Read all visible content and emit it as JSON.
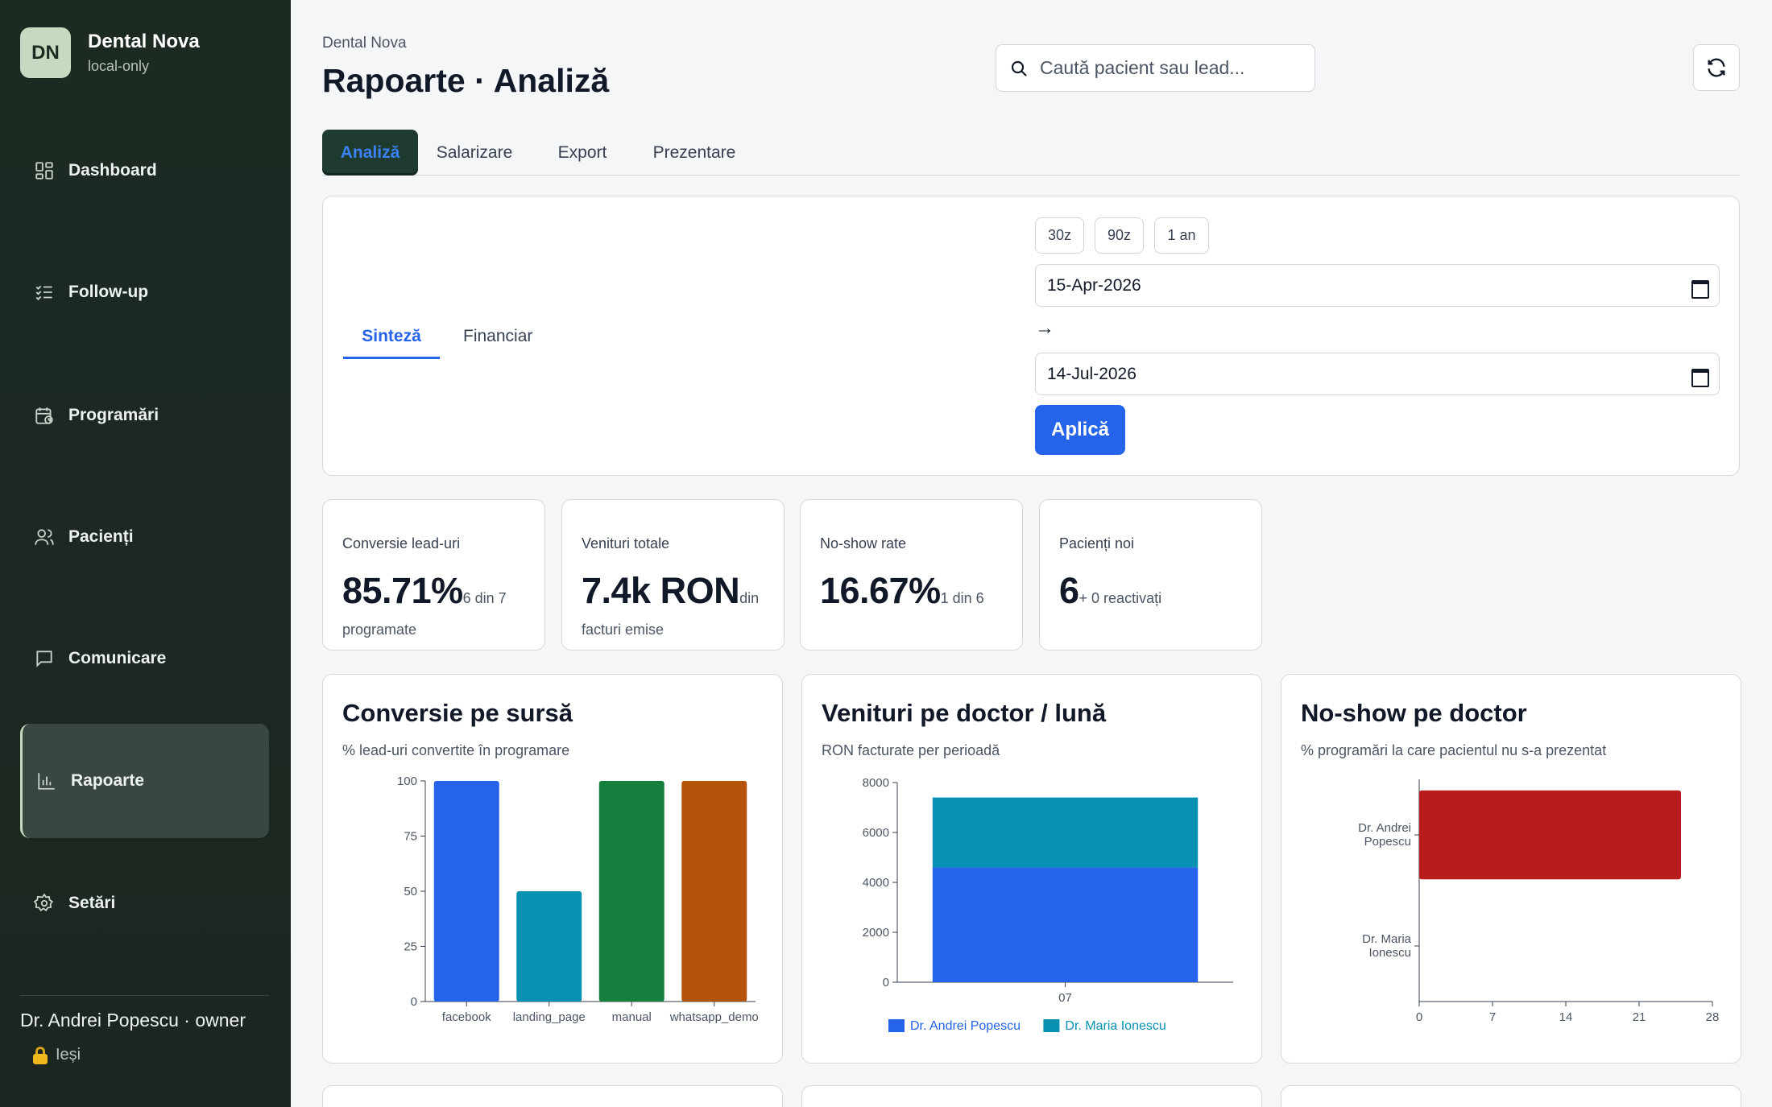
{
  "app": {
    "logo_initials": "DN",
    "name": "Dental Nova",
    "mode": "local-only"
  },
  "nav": {
    "items": [
      {
        "label": "Dashboard",
        "icon": "dashboard-icon"
      },
      {
        "label": "Follow-up",
        "icon": "checklist-icon"
      },
      {
        "label": "Programări",
        "icon": "calendar-clock-icon"
      },
      {
        "label": "Pacienți",
        "icon": "users-icon"
      },
      {
        "label": "Comunicare",
        "icon": "message-icon"
      },
      {
        "label": "Rapoarte",
        "icon": "bar-chart-icon"
      },
      {
        "label": "Setări",
        "icon": "gear-icon"
      }
    ],
    "active": "Rapoarte"
  },
  "user": {
    "label": "Dr. Andrei Popescu · owner",
    "logout": "Ieși"
  },
  "header": {
    "breadcrumb": "Dental Nova",
    "title": "Rapoarte · Analiză",
    "search_placeholder": "Caută pacient sau lead..."
  },
  "tabs": [
    "Analiză",
    "Salarizare",
    "Export",
    "Prezentare"
  ],
  "filters": {
    "subtabs": [
      "Sinteză",
      "Financiar"
    ],
    "ranges": [
      "30z",
      "90z",
      "1 an"
    ],
    "date_from": "15-Apr-2026",
    "arrow": "→",
    "date_to": "14-Jul-2026",
    "apply": "Aplică"
  },
  "kpis": [
    {
      "label": "Conversie lead-uri",
      "value": "85.71%",
      "note": "6 din 7 programate"
    },
    {
      "label": "Venituri totale",
      "value": "7.4k RON",
      "note": "din facturi emise"
    },
    {
      "label": "No-show rate",
      "value": "16.67%",
      "note": "1 din 6"
    },
    {
      "label": "Pacienți noi",
      "value": "6",
      "note": "+ 0 reactivați"
    }
  ],
  "charts": {
    "conversion": {
      "title": "Conversie pe sursă",
      "subtitle": "% lead-uri convertite în programare"
    },
    "revenue": {
      "title": "Venituri pe doctor / lună",
      "subtitle": "RON facturate per perioadă"
    },
    "noshow": {
      "title": "No-show pe doctor",
      "subtitle": "% programări la care pacientul nu s-a prezentat"
    }
  },
  "chart_data": [
    {
      "type": "bar",
      "title": "Conversie pe sursă",
      "categories": [
        "facebook",
        "landing_page",
        "manual",
        "whatsapp_demo"
      ],
      "values": [
        100,
        50,
        100,
        100
      ],
      "colors": [
        "#2563eb",
        "#0891b2",
        "#15803d",
        "#b45309"
      ],
      "ylim": [
        0,
        100
      ],
      "yticks": [
        0,
        25,
        50,
        75,
        100
      ]
    },
    {
      "type": "bar",
      "stacked": true,
      "title": "Venituri pe doctor / lună",
      "categories": [
        "07"
      ],
      "series": [
        {
          "name": "Dr. Andrei Popescu",
          "values": [
            4600
          ],
          "color": "#2563eb"
        },
        {
          "name": "Dr. Maria Ionescu",
          "values": [
            2800
          ],
          "color": "#0891b2"
        }
      ],
      "ylim": [
        0,
        8000
      ],
      "yticks": [
        0,
        2000,
        4000,
        6000,
        8000
      ],
      "legend": "bottom"
    },
    {
      "type": "bar",
      "orientation": "horizontal",
      "title": "No-show pe doctor",
      "categories": [
        "Dr. Andrei Popescu",
        "Dr. Maria Ionescu"
      ],
      "values": [
        25,
        0
      ],
      "color": "#b91c1c",
      "xlim": [
        0,
        28
      ],
      "xticks": [
        0,
        7,
        14,
        21,
        28
      ]
    }
  ]
}
